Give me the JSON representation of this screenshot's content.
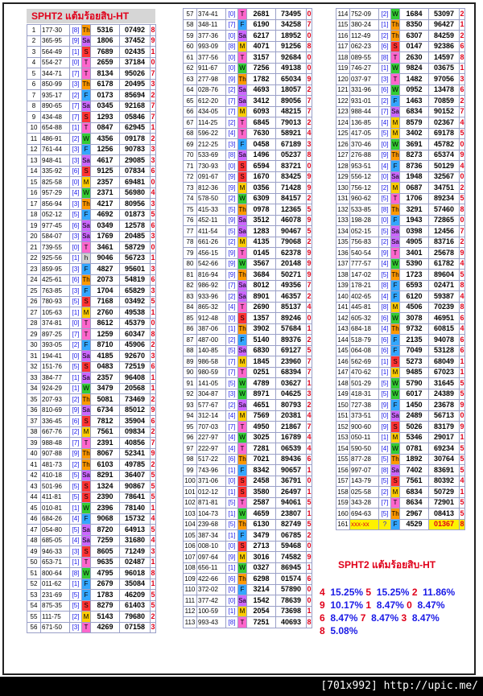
{
  "title": "SPHT2 แต้มร้อยสิบ-HT",
  "footer": "[701x992] http://upic.me/",
  "day_colors": {
    "Th": "#ff9900",
    "Sa": "#cc66ff",
    "T": "#ff66cc",
    "S": "#ff3333",
    "W": "#33cc33",
    "F": "#33a6ff",
    "M": "#ffcc00"
  },
  "rows": [
    [
      "1",
      "177-30",
      "[8]",
      "Th",
      "5316",
      "07492",
      "8"
    ],
    [
      "2",
      "365-95",
      "[9]",
      "Sa",
      "1806",
      "37452",
      "9"
    ],
    [
      "3",
      "564-49",
      "[1]",
      "S",
      "7689",
      "02435",
      "1"
    ],
    [
      "4",
      "554-27",
      "[0]",
      "T",
      "2659",
      "37184",
      "0"
    ],
    [
      "5",
      "344-71",
      "[7]",
      "T",
      "8134",
      "95026",
      "7"
    ],
    [
      "6",
      "850-99",
      "[3]",
      "Th",
      "6178",
      "20495",
      "3"
    ],
    [
      "7",
      "935-17",
      "[2]",
      "F",
      "0173",
      "85694",
      "2"
    ],
    [
      "8",
      "890-65",
      "[7]",
      "Sa",
      "0345",
      "92168",
      "7"
    ],
    [
      "9",
      "434-48",
      "[7]",
      "S",
      "1293",
      "05846",
      "7"
    ],
    [
      "10",
      "654-88",
      "[1]",
      "T",
      "0847",
      "62945",
      "1"
    ],
    [
      "11",
      "486-91",
      "[2]",
      "W",
      "4356",
      "09178",
      "2"
    ],
    [
      "12",
      "761-44",
      "[3]",
      "F",
      "1256",
      "90783",
      "3"
    ],
    [
      "13",
      "948-41",
      "[3]",
      "Sa",
      "4617",
      "29085",
      "3"
    ],
    [
      "14",
      "335-92",
      "[6]",
      "S",
      "9125",
      "07834",
      "6"
    ],
    [
      "15",
      "825-58",
      "[0]",
      "M",
      "2357",
      "69481",
      "0"
    ],
    [
      "16",
      "957-29",
      "[4]",
      "W",
      "2371",
      "56980",
      "4"
    ],
    [
      "17",
      "856-94",
      "[3]",
      "Th",
      "4217",
      "80956",
      "3"
    ],
    [
      "18",
      "052-12",
      "[5]",
      "F",
      "4692",
      "01873",
      "5"
    ],
    [
      "19",
      "977-45",
      "[6]",
      "Sa",
      "0349",
      "12578",
      "6"
    ],
    [
      "20",
      "584-07",
      "[3]",
      "Sa",
      "1769",
      "20485",
      "3"
    ],
    [
      "21",
      "739-55",
      "[0]",
      "T",
      "3461",
      "58729",
      "0"
    ],
    [
      "22",
      "925-56",
      "[1]",
      "h",
      "9046",
      "56723",
      "1"
    ],
    [
      "23",
      "859-95",
      "[3]",
      "F",
      "4827",
      "95601",
      "3"
    ],
    [
      "24",
      "425-61",
      "[6]",
      "Th",
      "2073",
      "54819",
      "6"
    ],
    [
      "25",
      "763-85",
      "[3]",
      "F",
      "1704",
      "65829",
      "3"
    ],
    [
      "26",
      "780-93",
      "[5]",
      "S",
      "7168",
      "03492",
      "5"
    ],
    [
      "27",
      "105-63",
      "[1]",
      "M",
      "2760",
      "49538",
      "1"
    ],
    [
      "28",
      "374-81",
      "[0]",
      "T",
      "8612",
      "45379",
      "0"
    ],
    [
      "29",
      "897-25",
      "[7]",
      "T",
      "1259",
      "60347",
      "8"
    ],
    [
      "30",
      "393-05",
      "[2]",
      "F",
      "8710",
      "45906",
      "2"
    ],
    [
      "31",
      "194-41",
      "[0]",
      "Sa",
      "4185",
      "92670",
      "3"
    ],
    [
      "32",
      "151-76",
      "[5]",
      "S",
      "0483",
      "72519",
      "6"
    ],
    [
      "33",
      "384-77",
      "[1]",
      "Sa",
      "2357",
      "96408",
      "1"
    ],
    [
      "34",
      "924-29",
      "[1]",
      "W",
      "3479",
      "20568",
      "1"
    ],
    [
      "35",
      "207-93",
      "[2]",
      "Th",
      "5081",
      "73469",
      "2"
    ],
    [
      "36",
      "810-69",
      "[9]",
      "Sa",
      "6734",
      "85012",
      "9"
    ],
    [
      "37",
      "336-45",
      "[6]",
      "S",
      "7812",
      "35904",
      "6"
    ],
    [
      "38",
      "667-76",
      "[2]",
      "M",
      "7561",
      "09834",
      "2"
    ],
    [
      "39",
      "988-48",
      "[7]",
      "T",
      "2391",
      "40856",
      "7"
    ],
    [
      "40",
      "907-88",
      "[9]",
      "Th",
      "8067",
      "52341",
      "9"
    ],
    [
      "41",
      "481-73",
      "[2]",
      "Th",
      "6103",
      "49785",
      "2"
    ],
    [
      "42",
      "410-18",
      "[5]",
      "Sa",
      "8291",
      "36407",
      "5"
    ],
    [
      "43",
      "501-96",
      "[5]",
      "S",
      "1324",
      "90867",
      "5"
    ],
    [
      "44",
      "411-81",
      "[5]",
      "S",
      "2390",
      "78641",
      "5"
    ],
    [
      "45",
      "010-81",
      "[1]",
      "W",
      "2396",
      "78140",
      "1"
    ],
    [
      "46",
      "684-26",
      "[4]",
      "F",
      "9068",
      "15732",
      "4"
    ],
    [
      "47",
      "054-80",
      "[5]",
      "Sa",
      "8720",
      "64913",
      "5"
    ],
    [
      "48",
      "685-05",
      "[4]",
      "Sa",
      "7259",
      "31680",
      "4"
    ],
    [
      "49",
      "946-33",
      "[3]",
      "S",
      "8605",
      "71249",
      "3"
    ],
    [
      "50",
      "653-71",
      "[1]",
      "T",
      "9635",
      "02487",
      "1"
    ],
    [
      "51",
      "800-64",
      "[8]",
      "W",
      "4795",
      "96018",
      "8"
    ],
    [
      "52",
      "011-62",
      "[1]",
      "F",
      "2679",
      "35084",
      "1"
    ],
    [
      "53",
      "231-69",
      "[5]",
      "F",
      "1783",
      "46209",
      "5"
    ],
    [
      "54",
      "875-35",
      "[5]",
      "S",
      "8279",
      "61403",
      "5"
    ],
    [
      "55",
      "111-75",
      "[2]",
      "M",
      "5143",
      "79680",
      "2"
    ],
    [
      "56",
      "671-50",
      "[3]",
      "T",
      "4269",
      "07158",
      "3"
    ],
    [
      "57",
      "374-41",
      "[0]",
      "T",
      "2681",
      "73495",
      "0"
    ],
    [
      "58",
      "348-11",
      "[7]",
      "F",
      "6190",
      "34258",
      "7"
    ],
    [
      "59",
      "377-36",
      "[0]",
      "Sa",
      "6217",
      "18952",
      "0"
    ],
    [
      "60",
      "993-09",
      "[8]",
      "M",
      "4071",
      "91256",
      "8"
    ],
    [
      "61",
      "377-56",
      "[0]",
      "T",
      "3157",
      "92684",
      "0"
    ],
    [
      "62",
      "911-67",
      "[0]",
      "W",
      "7256",
      "49138",
      "0"
    ],
    [
      "63",
      "277-98",
      "[9]",
      "Th",
      "1782",
      "65034",
      "9"
    ],
    [
      "64",
      "028-76",
      "[2]",
      "Sa",
      "4693",
      "18057",
      "2"
    ],
    [
      "65",
      "612-20",
      "[7]",
      "Sa",
      "3412",
      "89056",
      "7"
    ],
    [
      "66",
      "434-05",
      "[7]",
      "M",
      "6093",
      "48215",
      "7"
    ],
    [
      "67",
      "114-25",
      "[2]",
      "T",
      "6845",
      "79013",
      "2"
    ],
    [
      "68",
      "596-22",
      "[4]",
      "T",
      "7630",
      "58921",
      "4"
    ],
    [
      "69",
      "212-25",
      "[3]",
      "F",
      "0458",
      "67189",
      "3"
    ],
    [
      "70",
      "533-69",
      "[8]",
      "Sa",
      "1496",
      "05237",
      "8"
    ],
    [
      "71",
      "730-93",
      "[0]",
      "S",
      "6594",
      "83721",
      "0"
    ],
    [
      "72",
      "091-67",
      "[9]",
      "S",
      "1670",
      "83425",
      "9"
    ],
    [
      "73",
      "812-36",
      "[9]",
      "M",
      "0356",
      "71428",
      "9"
    ],
    [
      "74",
      "578-50",
      "[2]",
      "W",
      "6309",
      "84157",
      "2"
    ],
    [
      "75",
      "415-33",
      "[5]",
      "Th",
      "0978",
      "12365",
      "5"
    ],
    [
      "76",
      "452-11",
      "[9]",
      "Sa",
      "3512",
      "46078",
      "9"
    ],
    [
      "77",
      "411-54",
      "[5]",
      "Sa",
      "1283",
      "90467",
      "5"
    ],
    [
      "78",
      "661-26",
      "[2]",
      "M",
      "4135",
      "79068",
      "2"
    ],
    [
      "79",
      "456-15",
      "[9]",
      "T",
      "0145",
      "62378",
      "9"
    ],
    [
      "80",
      "542-66",
      "[9]",
      "W",
      "3567",
      "20148",
      "9"
    ],
    [
      "81",
      "816-94",
      "[9]",
      "Th",
      "3684",
      "50271",
      "9"
    ],
    [
      "82",
      "986-92",
      "[7]",
      "Sa",
      "8012",
      "49356",
      "7"
    ],
    [
      "83",
      "933-96",
      "[2]",
      "Sa",
      "8901",
      "46357",
      "2"
    ],
    [
      "84",
      "865-32",
      "[4]",
      "T",
      "2690",
      "85137",
      "4"
    ],
    [
      "85",
      "912-48",
      "[0]",
      "S",
      "1357",
      "89246",
      "0"
    ],
    [
      "86",
      "387-06",
      "[1]",
      "Th",
      "3902",
      "57684",
      "1"
    ],
    [
      "87",
      "487-00",
      "[2]",
      "F",
      "5140",
      "89376",
      "2"
    ],
    [
      "88",
      "140-85",
      "[5]",
      "Sa",
      "6830",
      "69127",
      "5"
    ],
    [
      "89",
      "986-58",
      "[7]",
      "M",
      "1845",
      "23960",
      "7"
    ],
    [
      "90",
      "980-59",
      "[7]",
      "T",
      "0251",
      "68394",
      "7"
    ],
    [
      "91",
      "141-05",
      "[5]",
      "W",
      "4789",
      "03627",
      "1"
    ],
    [
      "92",
      "304-87",
      "[3]",
      "W",
      "8971",
      "04625",
      "3"
    ],
    [
      "93",
      "577-67",
      "[2]",
      "Sa",
      "4651",
      "80793",
      "2"
    ],
    [
      "94",
      "312-14",
      "[4]",
      "M",
      "7569",
      "20381",
      "4"
    ],
    [
      "95",
      "707-03",
      "[7]",
      "T",
      "4950",
      "21867",
      "7"
    ],
    [
      "96",
      "227-97",
      "[4]",
      "W",
      "3025",
      "16789",
      "4"
    ],
    [
      "97",
      "222-97",
      "[4]",
      "T",
      "7281",
      "06539",
      "4"
    ],
    [
      "98",
      "517-22",
      "[6]",
      "Th",
      "7021",
      "89436",
      "6"
    ],
    [
      "99",
      "743-96",
      "[1]",
      "F",
      "8342",
      "90657",
      "1"
    ],
    [
      "100",
      "371-06",
      "[0]",
      "S",
      "2458",
      "36791",
      "0"
    ],
    [
      "101",
      "012-12",
      "[1]",
      "S",
      "3580",
      "26497",
      "1"
    ],
    [
      "102",
      "871-81",
      "[5]",
      "T",
      "2587",
      "94061",
      "5"
    ],
    [
      "103",
      "104-73",
      "[1]",
      "W",
      "4659",
      "23807",
      "1"
    ],
    [
      "104",
      "239-68",
      "[5]",
      "Th",
      "6130",
      "82749",
      "5"
    ],
    [
      "105",
      "387-34",
      "[1]",
      "F",
      "3479",
      "06785",
      "2"
    ],
    [
      "106",
      "008-10",
      "[0]",
      "S",
      "2713",
      "59468",
      "0"
    ],
    [
      "107",
      "097-64",
      "[9]",
      "M",
      "3016",
      "74582",
      "9"
    ],
    [
      "108",
      "656-11",
      "[1]",
      "W",
      "0327",
      "86945",
      "1"
    ],
    [
      "109",
      "422-66",
      "[6]",
      "Th",
      "6298",
      "01574",
      "6"
    ],
    [
      "110",
      "372-02",
      "[0]",
      "F",
      "3214",
      "57890",
      "0"
    ],
    [
      "111",
      "377-42",
      "[0]",
      "Sa",
      "1542",
      "78639",
      "0"
    ],
    [
      "112",
      "100-59",
      "[1]",
      "M",
      "2054",
      "73698",
      "1"
    ],
    [
      "113",
      "993-43",
      "[8]",
      "T",
      "7251",
      "40693",
      "8"
    ],
    [
      "114",
      "752-09",
      "[2]",
      "W",
      "1684",
      "53097",
      "2"
    ],
    [
      "115",
      "380-24",
      "[1]",
      "Th",
      "8350",
      "96427",
      "1"
    ],
    [
      "116",
      "112-49",
      "[2]",
      "Th",
      "6307",
      "84259",
      "2"
    ],
    [
      "117",
      "062-23",
      "[6]",
      "S",
      "0147",
      "92386",
      "6"
    ],
    [
      "118",
      "089-55",
      "[8]",
      "T",
      "2630",
      "14597",
      "8"
    ],
    [
      "119",
      "746-27",
      "[1]",
      "W",
      "9824",
      "03675",
      "1"
    ],
    [
      "120",
      "037-97",
      "[3]",
      "T",
      "1482",
      "97056",
      "3"
    ],
    [
      "121",
      "331-96",
      "[6]",
      "W",
      "0952",
      "13478",
      "6"
    ],
    [
      "122",
      "931-01",
      "[2]",
      "F",
      "1463",
      "70859",
      "2"
    ],
    [
      "123",
      "988-44",
      "[7]",
      "Sa",
      "6834",
      "90152",
      "7"
    ],
    [
      "124",
      "136-85",
      "[4]",
      "M",
      "8579",
      "02367",
      "4"
    ],
    [
      "125",
      "417-05",
      "[5]",
      "M",
      "3402",
      "69178",
      "5"
    ],
    [
      "126",
      "370-46",
      "[0]",
      "W",
      "3691",
      "45782",
      "0"
    ],
    [
      "127",
      "276-88",
      "[9]",
      "Th",
      "8273",
      "65374",
      "9"
    ],
    [
      "128",
      "953-51",
      "[4]",
      "F",
      "8736",
      "50129",
      "4"
    ],
    [
      "129",
      "556-12",
      "[0]",
      "Sa",
      "1948",
      "32567",
      "0"
    ],
    [
      "130",
      "756-12",
      "[2]",
      "M",
      "0687",
      "34751",
      "2"
    ],
    [
      "131",
      "960-62",
      "[5]",
      "T",
      "1706",
      "89234",
      "5"
    ],
    [
      "132",
      "533-85",
      "[8]",
      "Th",
      "3291",
      "57460",
      "8"
    ],
    [
      "133",
      "198-28",
      "[0]",
      "F",
      "1943",
      "72865",
      "0"
    ],
    [
      "134",
      "052-15",
      "[5]",
      "Sa",
      "0398",
      "12456",
      "7"
    ],
    [
      "135",
      "756-83",
      "[2]",
      "Sa",
      "4905",
      "83716",
      "2"
    ],
    [
      "136",
      "540-54",
      "[9]",
      "T",
      "3401",
      "25678",
      "9"
    ],
    [
      "137",
      "777-57",
      "[4]",
      "W",
      "5390",
      "61782",
      "4"
    ],
    [
      "138",
      "147-02",
      "[5]",
      "Th",
      "1723",
      "89604",
      "5"
    ],
    [
      "139",
      "178-21",
      "[8]",
      "F",
      "6593",
      "02471",
      "8"
    ],
    [
      "140",
      "402-65",
      "[4]",
      "F",
      "6120",
      "59387",
      "4"
    ],
    [
      "141",
      "445-81",
      "[8]",
      "M",
      "4506",
      "70239",
      "8"
    ],
    [
      "142",
      "605-32",
      "[6]",
      "W",
      "3078",
      "46951",
      "6"
    ],
    [
      "143",
      "684-18",
      "[4]",
      "Th",
      "9732",
      "60815",
      "4"
    ],
    [
      "144",
      "518-79",
      "[6]",
      "F",
      "2135",
      "94078",
      "6"
    ],
    [
      "145",
      "064-08",
      "[6]",
      "F",
      "7049",
      "53128",
      "6"
    ],
    [
      "146",
      "562-69",
      "[1]",
      "S",
      "5273",
      "68049",
      "1"
    ],
    [
      "147",
      "470-62",
      "[1]",
      "M",
      "9485",
      "67023",
      "1"
    ],
    [
      "148",
      "501-29",
      "[5]",
      "W",
      "5790",
      "31645",
      "5"
    ],
    [
      "149",
      "418-31",
      "[5]",
      "W",
      "6017",
      "24389",
      "5"
    ],
    [
      "150",
      "727-38",
      "[9]",
      "F",
      "1450",
      "23678",
      "9"
    ],
    [
      "151",
      "373-51",
      "[0]",
      "Sa",
      "2489",
      "56713",
      "0"
    ],
    [
      "152",
      "900-60",
      "[9]",
      "S",
      "5026",
      "83179",
      "9"
    ],
    [
      "153",
      "050-11",
      "[1]",
      "M",
      "5346",
      "29017",
      "1"
    ],
    [
      "154",
      "590-50",
      "[4]",
      "W",
      "0781",
      "69234",
      "5"
    ],
    [
      "155",
      "877-28",
      "[5]",
      "Th",
      "1892",
      "30764",
      "5"
    ],
    [
      "156",
      "997-07",
      "[8]",
      "Sa",
      "7402",
      "83691",
      "5"
    ],
    [
      "157",
      "143-79",
      "[5]",
      "S",
      "7561",
      "80392",
      "4"
    ],
    [
      "158",
      "025-58",
      "[2]",
      "M",
      "6834",
      "50729",
      "1"
    ],
    [
      "159",
      "343-28",
      "[7]",
      "T",
      "8634",
      "72901",
      "5"
    ],
    [
      "160",
      "694-63",
      "[5]",
      "Th",
      "2967",
      "08413",
      "5"
    ],
    [
      "161",
      "xxx-xx",
      "?",
      "F",
      "4529",
      "01367",
      "8"
    ]
  ],
  "summary_title": "SPHT2 แต้มร้อยสิบ-HT",
  "stats": [
    [
      [
        "4",
        "15.25%"
      ],
      [
        "5",
        "15.25%"
      ],
      [
        "2",
        "11.86%"
      ]
    ],
    [
      [
        "9",
        "10.17%"
      ],
      [
        "1",
        "8.47%"
      ],
      [
        "0",
        "8.47%"
      ]
    ],
    [
      [
        "6",
        "8.47%"
      ],
      [
        "7",
        "8.47%"
      ],
      [
        "3",
        "8.47%"
      ]
    ],
    [
      [
        "8",
        "5.08%"
      ]
    ]
  ]
}
